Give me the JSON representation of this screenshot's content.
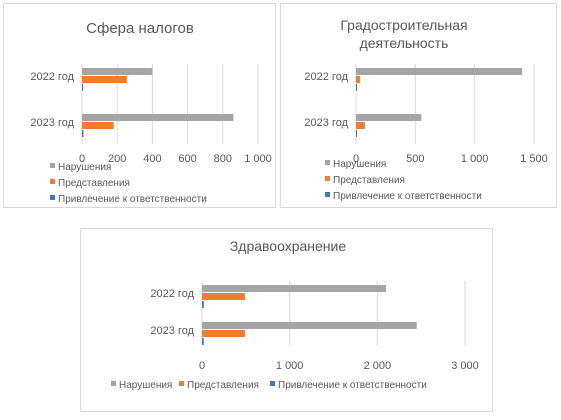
{
  "colors": {
    "violations": "#a5a5a5",
    "submissions": "#ed7d31",
    "liability": "#4472c4",
    "grid": "#d9d9d9",
    "text": "#595959"
  },
  "chart_data": [
    {
      "type": "bar",
      "orientation": "horizontal",
      "title": [
        "Сфера налогов"
      ],
      "categories": [
        "2022 год",
        "2023 год"
      ],
      "series": [
        {
          "name": "Нарушения",
          "values": [
            400,
            860
          ]
        },
        {
          "name": "Представления",
          "values": [
            255,
            180
          ]
        },
        {
          "name": "Привлечение к ответственности",
          "values": [
            5,
            8
          ]
        }
      ],
      "xlim": [
        0,
        1000
      ],
      "x_ticks": [
        0,
        200,
        400,
        600,
        800,
        1000
      ],
      "x_tick_labels": [
        "0",
        "200",
        "400",
        "600",
        "800",
        "1 000"
      ],
      "grid": true,
      "legend_position": "bottom-stacked"
    },
    {
      "type": "bar",
      "orientation": "horizontal",
      "title": [
        "Градостроительная",
        "деятельность"
      ],
      "categories": [
        "2022 год",
        "2023 год"
      ],
      "series": [
        {
          "name": "Нарушения",
          "values": [
            1400,
            550
          ]
        },
        {
          "name": "Представления",
          "values": [
            35,
            75
          ]
        },
        {
          "name": "Привлечение к ответственности",
          "values": [
            5,
            5
          ]
        }
      ],
      "xlim": [
        0,
        1500
      ],
      "x_ticks": [
        0,
        500,
        1000,
        1500
      ],
      "x_tick_labels": [
        "0",
        "500",
        "1 000",
        "1 500"
      ],
      "grid": true,
      "legend_position": "bottom-stacked"
    },
    {
      "type": "bar",
      "orientation": "horizontal",
      "title": [
        "Здравоохранение"
      ],
      "categories": [
        "2022 год",
        "2023 год"
      ],
      "series": [
        {
          "name": "Нарушения",
          "values": [
            2100,
            2450
          ]
        },
        {
          "name": "Представления",
          "values": [
            490,
            490
          ]
        },
        {
          "name": "Привлечение к ответственности",
          "values": [
            20,
            20
          ]
        }
      ],
      "xlim": [
        0,
        3000
      ],
      "x_ticks": [
        0,
        1000,
        2000,
        3000
      ],
      "x_tick_labels": [
        "0",
        "1 000",
        "2 000",
        "3 000"
      ],
      "grid": true,
      "legend_position": "bottom-inline"
    }
  ]
}
